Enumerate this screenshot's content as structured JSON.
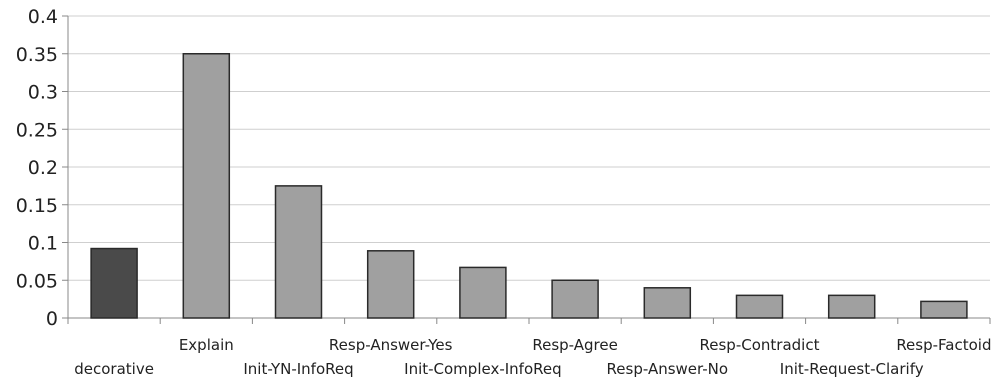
{
  "chart_data": {
    "type": "bar",
    "title": "",
    "xlabel": "",
    "ylabel": "",
    "ylim": [
      0,
      0.4
    ],
    "yticks": [
      0,
      0.05,
      0.1,
      0.15,
      0.2,
      0.25,
      0.3,
      0.35,
      0.4
    ],
    "ytick_labels": [
      "0",
      "0.05",
      "0.1",
      "0.15",
      "0.2",
      "0.25",
      "0.3",
      "0.35",
      "0.4"
    ],
    "grid": true,
    "legend": "none",
    "categories": [
      "decorative",
      "Explain",
      "Init-YN-InfoReq",
      "Resp-Answer-Yes",
      "Init-Complex-InfoReq",
      "Resp-Agree",
      "Resp-Answer-No",
      "Resp-Contradict",
      "Init-Request-Clarify",
      "Resp-Factoid"
    ],
    "values": [
      0.092,
      0.35,
      0.175,
      0.089,
      0.067,
      0.05,
      0.04,
      0.03,
      0.03,
      0.022
    ],
    "bar_colors": [
      "#4a4a4a",
      "#a0a0a0",
      "#a0a0a0",
      "#a0a0a0",
      "#a0a0a0",
      "#a0a0a0",
      "#a0a0a0",
      "#a0a0a0",
      "#a0a0a0",
      "#a0a0a0"
    ],
    "grid_color": "#cfcfcf",
    "axis_color": "#888888",
    "bar_stroke_color": "#2a2a2a"
  }
}
